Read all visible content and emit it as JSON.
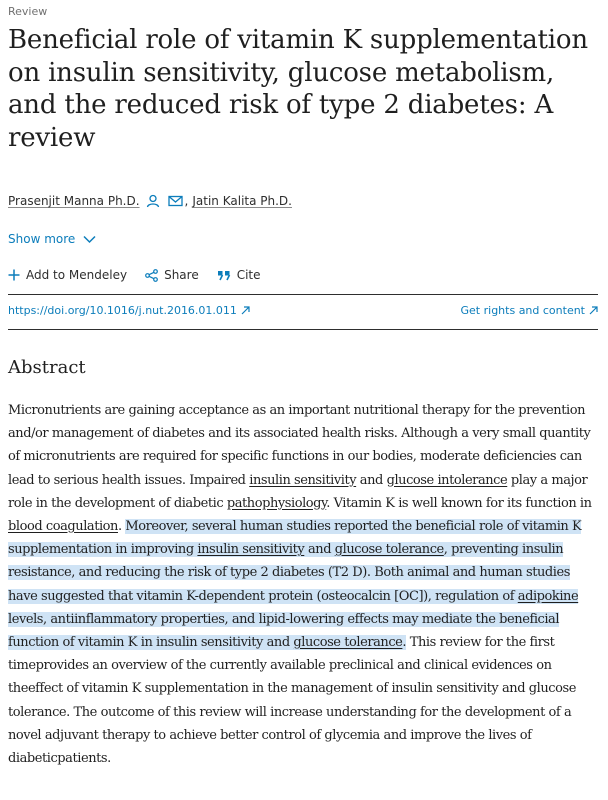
{
  "article": {
    "type_label": "Review",
    "title": "Beneficial role of vitamin K supplementation on insulin sensitivity, glucose metabolism, and the reduced risk of type 2 diabetes: A review"
  },
  "authors": [
    {
      "name": "Prasenjit Manna Ph.D."
    },
    {
      "name": "Jatin Kalita Ph.D."
    }
  ],
  "author_separator": ",",
  "show_more": "Show more",
  "actions": {
    "add_to_mendeley": "Add to Mendeley",
    "share": "Share",
    "cite": "Cite"
  },
  "links": {
    "doi": "https://doi.org/10.1016/j.nut.2016.01.011",
    "rights": "Get rights and content"
  },
  "abstract": {
    "heading": "Abstract",
    "t1": "Micronutrients are gaining acceptance as an important nutritional therapy for the prevention and/or management of diabetes and its associated health risks. Although a very small quantity of micronutrients are required for specific functions in our bodies, moderate deficiencies can lead to serious health issues. Impaired ",
    "l1": "insulin sensitivity",
    "t2": " and ",
    "l2": "glucose intolerance",
    "t3": " play a major role in the development of diabetic ",
    "l3": "pathophysiology",
    "t4": ". Vitamin K is well known for its function in ",
    "l4": "blood coagulation",
    "t5": ". ",
    "h1": "Moreover, several human studies reported the beneficial role of vitamin K supplementation in improving ",
    "l5": "insulin sensitivity",
    "h2": " and ",
    "l6": "glucose tolerance",
    "h3": ", preventing insulin resistance, and reducing the risk of type 2 diabetes (T2 D). Both animal and human studies have suggested that vitamin K-dependent protein (osteocalcin [OC]), regulation of ",
    "l7": "adipokine",
    "h4": " levels, antiinflammatory properties, and lipid-lowering effects may mediate the beneficial function of vitamin K in insulin sensitivity and ",
    "l8": "glucose tolerance",
    "h5": ".",
    "t6": " This review for the first timeprovides an overview of the currently available preclinical and clinical evidences on theeffect of vitamin K supplementation in the management of insulin sensitivity and glucose tolerance. The outcome of this review will increase understanding for the development of a novel adjuvant therapy to achieve better control of glycemia and improve the lives of diabeticpatients."
  },
  "icons": {
    "person": "person-icon",
    "email": "envelope-icon",
    "chevron": "chevron-down-icon",
    "plus": "plus-icon",
    "share": "share-icon",
    "cite": "quote-icon",
    "external": "external-arrow-icon"
  },
  "colors": {
    "link": "#0c7dbb",
    "highlight": "#cfe3f5",
    "text": "#1f1f1f"
  }
}
